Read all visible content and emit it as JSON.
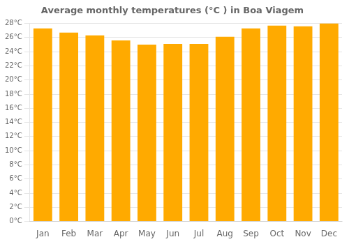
{
  "chart_data": {
    "type": "bar",
    "title": "Average monthly temperatures (°C ) in Boa Viagem",
    "categories": [
      "Jan",
      "Feb",
      "Mar",
      "Apr",
      "May",
      "Jun",
      "Jul",
      "Aug",
      "Sep",
      "Oct",
      "Nov",
      "Dec"
    ],
    "values": [
      27.3,
      26.7,
      26.3,
      25.6,
      25.0,
      25.1,
      25.1,
      26.1,
      27.3,
      27.7,
      27.6,
      28.0
    ],
    "color": "#FFAA00",
    "ylim": [
      0,
      28
    ],
    "yticks": [
      {
        "value": 0,
        "label": "0°C"
      },
      {
        "value": 2,
        "label": "2°C"
      },
      {
        "value": 4,
        "label": "4°C"
      },
      {
        "value": 6,
        "label": "6°C"
      },
      {
        "value": 8,
        "label": "8°C"
      },
      {
        "value": 10,
        "label": "10°C"
      },
      {
        "value": 12,
        "label": "12°C"
      },
      {
        "value": 14,
        "label": "14°C"
      },
      {
        "value": 16,
        "label": "16°C"
      },
      {
        "value": 18,
        "label": "18°C"
      },
      {
        "value": 20,
        "label": "20°C"
      },
      {
        "value": 22,
        "label": "22°C"
      },
      {
        "value": 24,
        "label": "24°C"
      },
      {
        "value": 26,
        "label": "26°C"
      },
      {
        "value": 28,
        "label": "28°C"
      }
    ],
    "grid": true
  }
}
